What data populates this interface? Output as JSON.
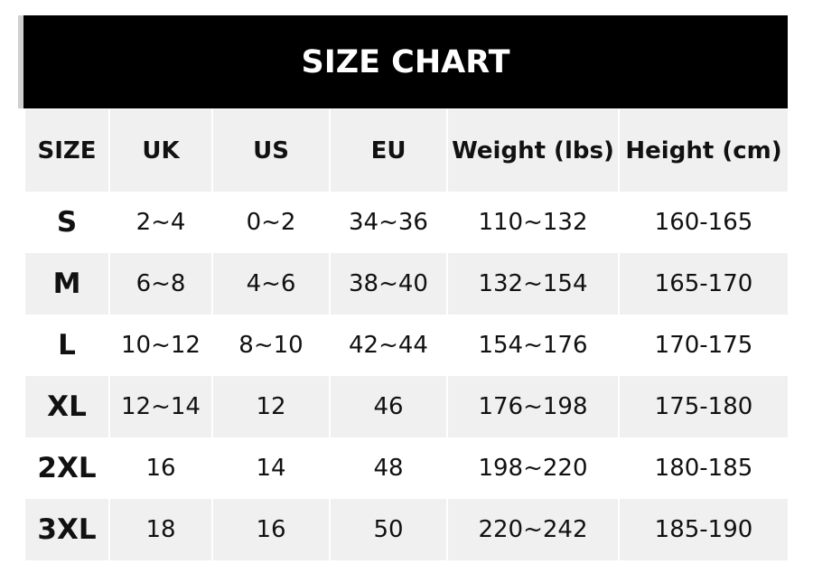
{
  "title": "SIZE CHART",
  "headers": [
    "SIZE",
    "UK",
    "US",
    "EU",
    "Weight (lbs)",
    "Height (cm)"
  ],
  "rows": [
    [
      "S",
      "2~4",
      "0~2",
      "34~36",
      "110~132",
      "160-165"
    ],
    [
      "M",
      "6~8",
      "4~6",
      "38~40",
      "132~154",
      "165-170"
    ],
    [
      "L",
      "10~12",
      "8~10",
      "42~44",
      "154~176",
      "170-175"
    ],
    [
      "XL",
      "12~14",
      "12",
      "46",
      "176~198",
      "175-180"
    ],
    [
      "2XL",
      "16",
      "14",
      "48",
      "198~220",
      "180-185"
    ],
    [
      "3XL",
      "18",
      "16",
      "50",
      "220~242",
      "185-190"
    ]
  ]
}
